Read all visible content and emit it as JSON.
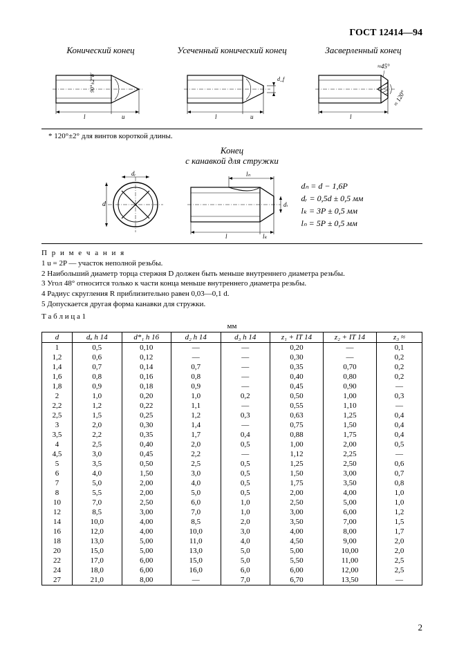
{
  "header": {
    "standard": "ГОСТ 12414—94"
  },
  "figures_top": {
    "a": {
      "title": "Конический конец"
    },
    "b": {
      "title": "Усеченный конический конец"
    },
    "c": {
      "title": "Засверленный конец",
      "angle1": "≈45°",
      "angle2": "≈ 120°"
    },
    "common_angle": "90°±2°8′",
    "dim_l": "l",
    "dim_u": "u",
    "dim_df": "d_f"
  },
  "footnote": "* 120°±2° для винтов короткой длины.",
  "figures_mid": {
    "title_line1": "Конец",
    "title_line2": "с канавкой для стружки",
    "formulas": {
      "f1": "dₙ = d − 1,6P",
      "f2": "dᵣ = 0,5d ± 0,5 мм",
      "f3": "lₖ = 3P ± 0,5 мм",
      "f4": "lₙ = 5P ± 0,5 мм"
    },
    "labels": {
      "d": "d",
      "dr": "dᵣ",
      "dn": "dₙ",
      "lk": "lₖ",
      "ln": "lₙ",
      "l": "l"
    }
  },
  "notes": {
    "header": "П р и м е ч а н и я",
    "n1": "1 u = 2P — участок неполной резьбы.",
    "n2": "2 Наибольший диаметр торца стержня D должен быть меньше внутреннего диаметра резьбы.",
    "n3": "3 Угол 48° относится только к части конца меньше внутреннего диаметра резьбы.",
    "n4": "4 Радиус скругления R приблизительно равен 0,03—0,1 d.",
    "n5": "5 Допускается другая форма канавки для стружки."
  },
  "table": {
    "caption": "Т а б л и ц а  1",
    "unit": "мм",
    "columns": [
      "d",
      "dₐ h 14",
      "d*₁ h 16",
      "d₂ h 14",
      "d₃ h 14",
      "z₁ + IT 14",
      "z₂ + IT 14",
      "z₃ ≈"
    ],
    "col_widths_pct": [
      8,
      13,
      13,
      13,
      13,
      14,
      14,
      12
    ],
    "rows": [
      [
        "1",
        "0,5",
        "0,10",
        "—",
        "—",
        "0,20",
        "—",
        "0,1"
      ],
      [
        "1,2",
        "0,6",
        "0,12",
        "—",
        "—",
        "0,30",
        "—",
        "0,2"
      ],
      [
        "1,4",
        "0,7",
        "0,14",
        "0,7",
        "—",
        "0,35",
        "0,70",
        "0,2"
      ],
      [
        "1,6",
        "0,8",
        "0,16",
        "0,8",
        "—",
        "0,40",
        "0,80",
        "0,2"
      ],
      [
        "1,8",
        "0,9",
        "0,18",
        "0,9",
        "—",
        "0,45",
        "0,90",
        "—"
      ],
      [
        "2",
        "1,0",
        "0,20",
        "1,0",
        "0,2",
        "0,50",
        "1,00",
        "0,3"
      ],
      [
        "2,2",
        "1,2",
        "0,22",
        "1,1",
        "—",
        "0,55",
        "1,10",
        "—"
      ],
      [
        "2,5",
        "1,5",
        "0,25",
        "1,2",
        "0,3",
        "0,63",
        "1,25",
        "0,4"
      ],
      [
        "3",
        "2,0",
        "0,30",
        "1,4",
        "—",
        "0,75",
        "1,50",
        "0,4"
      ],
      [
        "3,5",
        "2,2",
        "0,35",
        "1,7",
        "0,4",
        "0,88",
        "1,75",
        "0,4"
      ],
      [
        "4",
        "2,5",
        "0,40",
        "2,0",
        "0,5",
        "1,00",
        "2,00",
        "0,5"
      ],
      [
        "4,5",
        "3,0",
        "0,45",
        "2,2",
        "—",
        "1,12",
        "2,25",
        "—"
      ],
      [
        "5",
        "3,5",
        "0,50",
        "2,5",
        "0,5",
        "1,25",
        "2,50",
        "0,6"
      ],
      [
        "6",
        "4,0",
        "1,50",
        "3,0",
        "0,5",
        "1,50",
        "3,00",
        "0,7"
      ],
      [
        "7",
        "5,0",
        "2,00",
        "4,0",
        "0,5",
        "1,75",
        "3,50",
        "0,8"
      ],
      [
        "8",
        "5,5",
        "2,00",
        "5,0",
        "0,5",
        "2,00",
        "4,00",
        "1,0"
      ],
      [
        "10",
        "7,0",
        "2,50",
        "6,0",
        "1,0",
        "2,50",
        "5,00",
        "1,0"
      ],
      [
        "12",
        "8,5",
        "3,00",
        "7,0",
        "1,0",
        "3,00",
        "6,00",
        "1,2"
      ],
      [
        "14",
        "10,0",
        "4,00",
        "8,5",
        "2,0",
        "3,50",
        "7,00",
        "1,5"
      ],
      [
        "16",
        "12,0",
        "4,00",
        "10,0",
        "3,0",
        "4,00",
        "8,00",
        "1,7"
      ],
      [
        "18",
        "13,0",
        "5,00",
        "11,0",
        "4,0",
        "4,50",
        "9,00",
        "2,0"
      ],
      [
        "20",
        "15,0",
        "5,00",
        "13,0",
        "5,0",
        "5,00",
        "10,00",
        "2,0"
      ],
      [
        "22",
        "17,0",
        "6,00",
        "15,0",
        "5,0",
        "5,50",
        "11,00",
        "2,5"
      ],
      [
        "24",
        "18,0",
        "6,00",
        "16,0",
        "6,0",
        "6,00",
        "12,00",
        "2,5"
      ],
      [
        "27",
        "21,0",
        "8,00",
        "—",
        "7,0",
        "6,70",
        "13,50",
        "—"
      ]
    ]
  },
  "page_number": "2"
}
